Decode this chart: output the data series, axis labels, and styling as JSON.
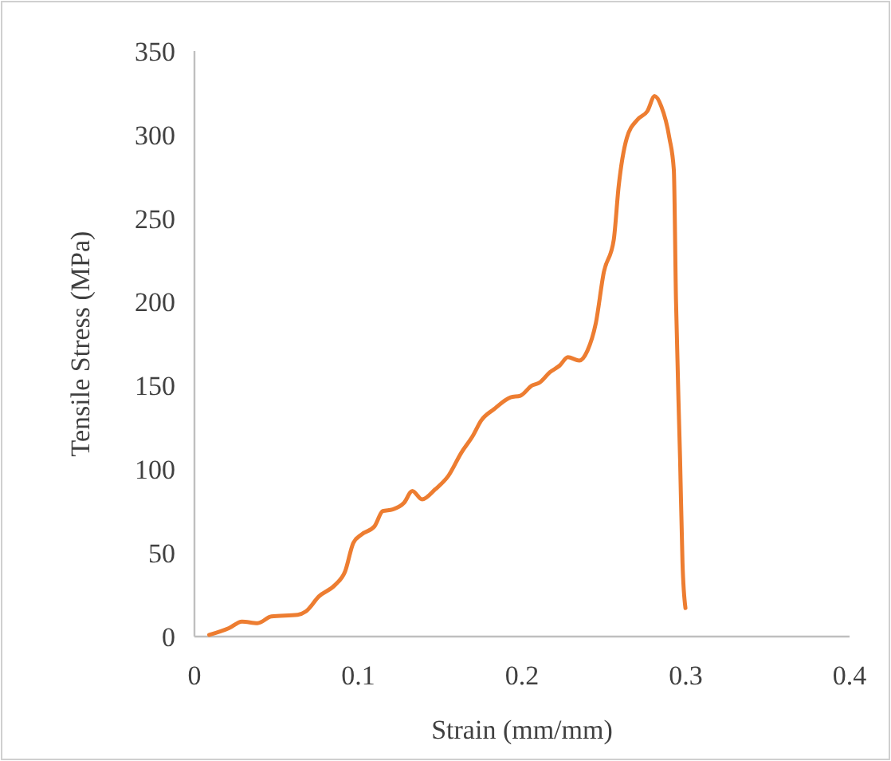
{
  "chart_data": {
    "type": "line",
    "xlabel": "Strain (mm/mm)",
    "ylabel": "Tensile Stress (MPa)",
    "xlim": [
      0,
      0.4
    ],
    "xticks": [
      0,
      0.1,
      0.2,
      0.3,
      0.4
    ],
    "ylim": [
      0,
      350
    ],
    "yticks": [
      0,
      50,
      100,
      150,
      200,
      250,
      300,
      350
    ],
    "marker": "none",
    "line_style": "solid",
    "series": [
      {
        "color": "#ed7d31",
        "x": [
          0.009,
          0.021,
          0.029,
          0.0385,
          0.047,
          0.063,
          0.068,
          0.076,
          0.086,
          0.092,
          0.097,
          0.102,
          0.11,
          0.115,
          0.121,
          0.128,
          0.133,
          0.139,
          0.147,
          0.155,
          0.163,
          0.17,
          0.175,
          0.183,
          0.193,
          0.199,
          0.206,
          0.211,
          0.217,
          0.223,
          0.228,
          0.235,
          0.24,
          0.245,
          0.25,
          0.256,
          0.259,
          0.264,
          0.2705,
          0.2765,
          0.281,
          0.285,
          0.29,
          0.2927,
          0.294,
          0.2965,
          0.298,
          0.2998
        ],
        "values": [
          1,
          5,
          9,
          8,
          12,
          13,
          15,
          24,
          31,
          39,
          56,
          61,
          66,
          75,
          76,
          80,
          87,
          82,
          88,
          96,
          110,
          120,
          129,
          136,
          143,
          144,
          150,
          152,
          158,
          162,
          167,
          165,
          171,
          187,
          218,
          237,
          269,
          298,
          309,
          314,
          323,
          317,
          298,
          279,
          202,
          107,
          44,
          17
        ]
      }
    ]
  }
}
